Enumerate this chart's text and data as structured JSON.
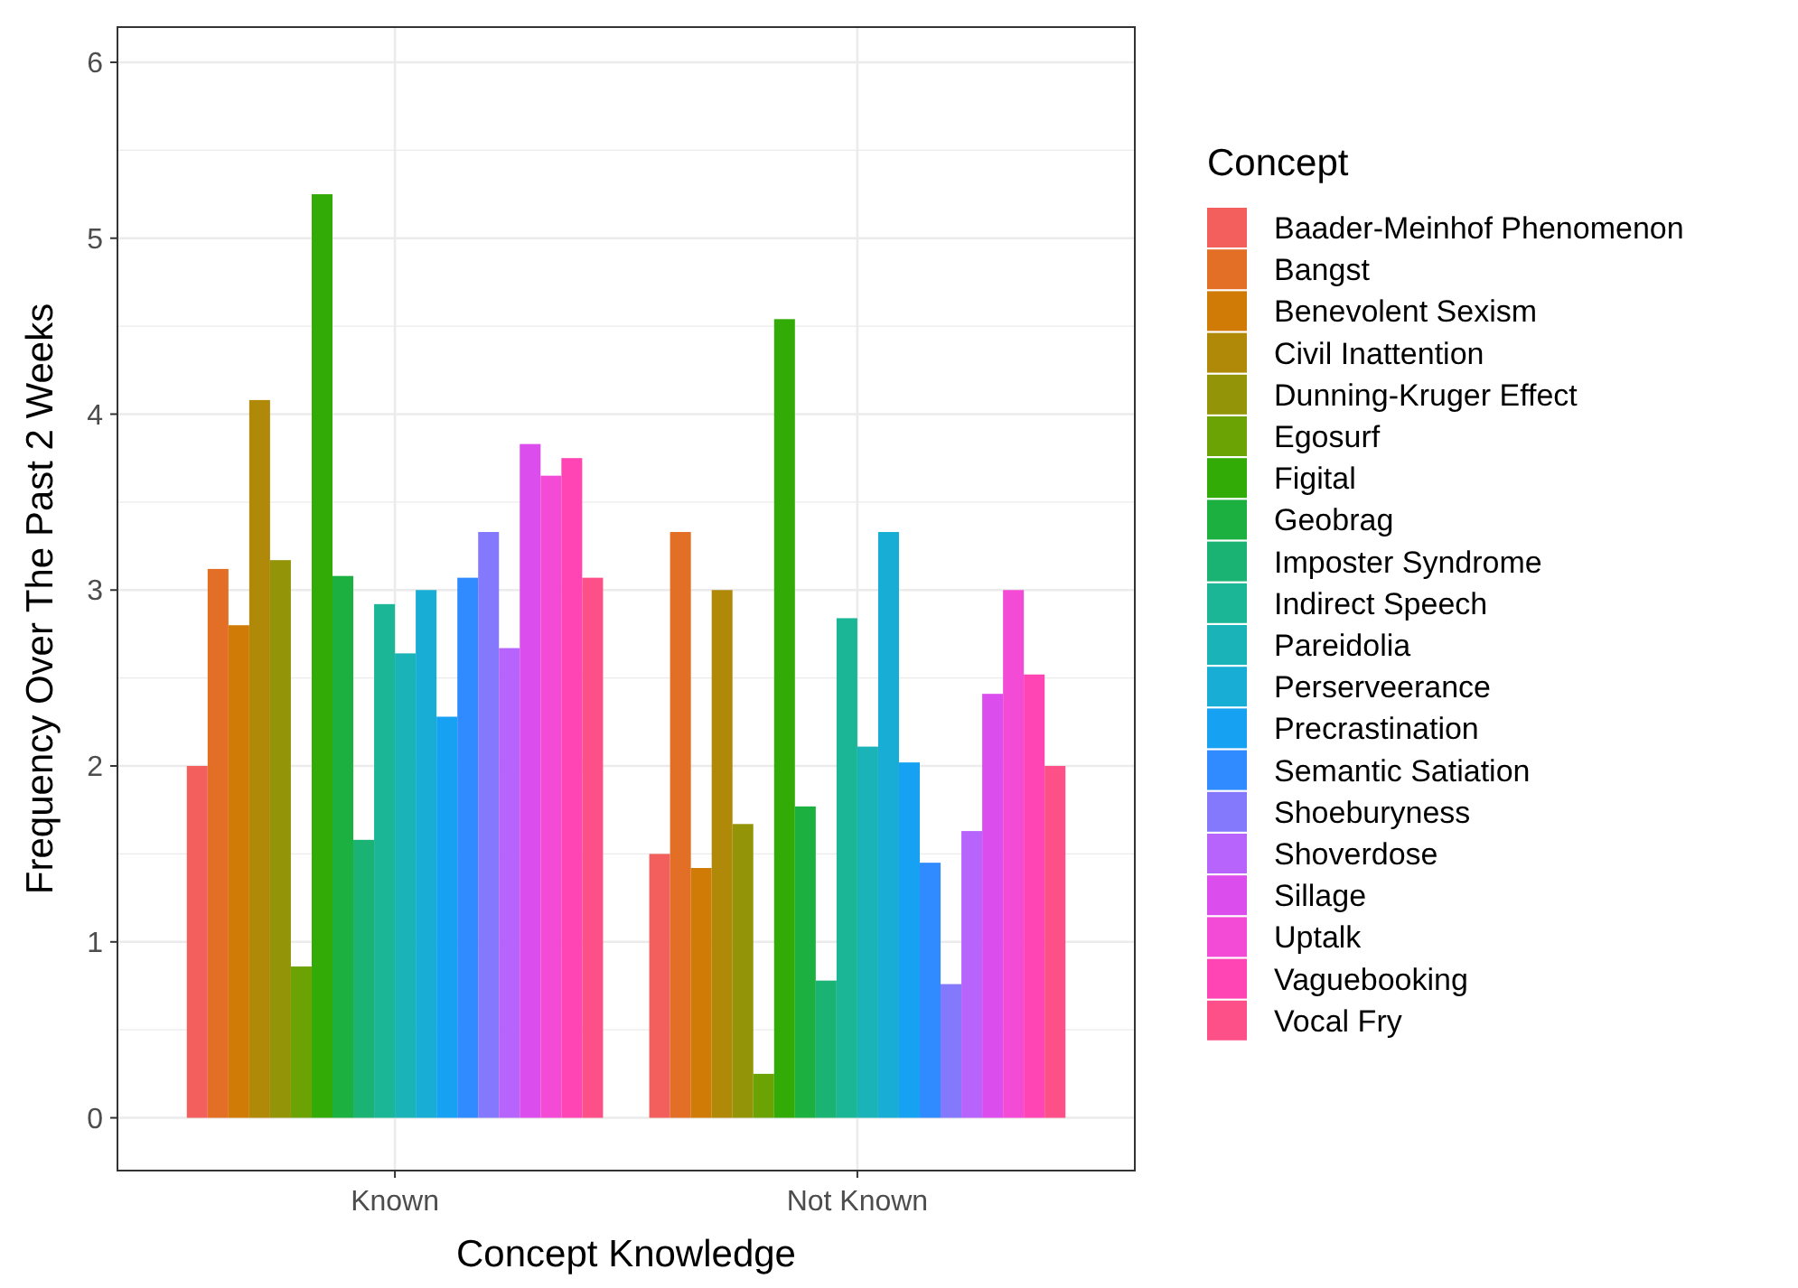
{
  "chart_data": {
    "type": "bar",
    "xlabel": "Concept Knowledge",
    "ylabel": "Frequency Over The Past 2 Weeks",
    "legend_title": "Concept",
    "legend": "right",
    "grid": true,
    "categories": [
      "Known",
      "Not Known"
    ],
    "ylim": [
      -0.3,
      6.2
    ],
    "yticks": [
      0,
      1,
      2,
      3,
      4,
      5,
      6
    ],
    "series": [
      {
        "name": "Baader-Meinhof Phenomenon",
        "color": "#f25f5c",
        "values": [
          2.0,
          1.5
        ]
      },
      {
        "name": "Bangst",
        "color": "#e36e26",
        "values": [
          3.12,
          3.33
        ]
      },
      {
        "name": "Benevolent Sexism",
        "color": "#cf7b05",
        "values": [
          2.8,
          1.42
        ]
      },
      {
        "name": "Civil Inattention",
        "color": "#b18908",
        "values": [
          4.08,
          3.0
        ]
      },
      {
        "name": "Dunning-Kruger Effect",
        "color": "#939407",
        "values": [
          3.17,
          1.67
        ]
      },
      {
        "name": "Egosurf",
        "color": "#6ba204",
        "values": [
          0.86,
          0.25
        ]
      },
      {
        "name": "Figital",
        "color": "#33ab06",
        "values": [
          5.25,
          4.54
        ]
      },
      {
        "name": "Geobrag",
        "color": "#1bb03f",
        "values": [
          3.08,
          1.77
        ]
      },
      {
        "name": "Imposter Syndrome",
        "color": "#1bb373",
        "values": [
          1.58,
          0.78
        ]
      },
      {
        "name": "Indirect Speech",
        "color": "#1bb696",
        "values": [
          2.92,
          2.84
        ]
      },
      {
        "name": "Pareidolia",
        "color": "#1ab4b8",
        "values": [
          2.64,
          2.11
        ]
      },
      {
        "name": "Perserveerance",
        "color": "#18add5",
        "values": [
          3.0,
          3.33
        ]
      },
      {
        "name": "Precrastination",
        "color": "#17a1f2",
        "values": [
          2.28,
          2.02
        ]
      },
      {
        "name": "Semantic Satiation",
        "color": "#2f8bff",
        "values": [
          3.07,
          1.45
        ]
      },
      {
        "name": "Shoeburyness",
        "color": "#8479fc",
        "values": [
          3.33,
          0.76
        ]
      },
      {
        "name": "Shoverdose",
        "color": "#b664fc",
        "values": [
          2.67,
          1.63
        ]
      },
      {
        "name": "Sillage",
        "color": "#dc4ded",
        "values": [
          3.83,
          2.41
        ]
      },
      {
        "name": "Uptalk",
        "color": "#f44bd6",
        "values": [
          3.65,
          3.0
        ]
      },
      {
        "name": "Vaguebooking",
        "color": "#ff45b3",
        "values": [
          3.75,
          2.52
        ]
      },
      {
        "name": "Vocal Fry",
        "color": "#fe5088",
        "values": [
          3.07,
          2.0
        ]
      }
    ]
  }
}
